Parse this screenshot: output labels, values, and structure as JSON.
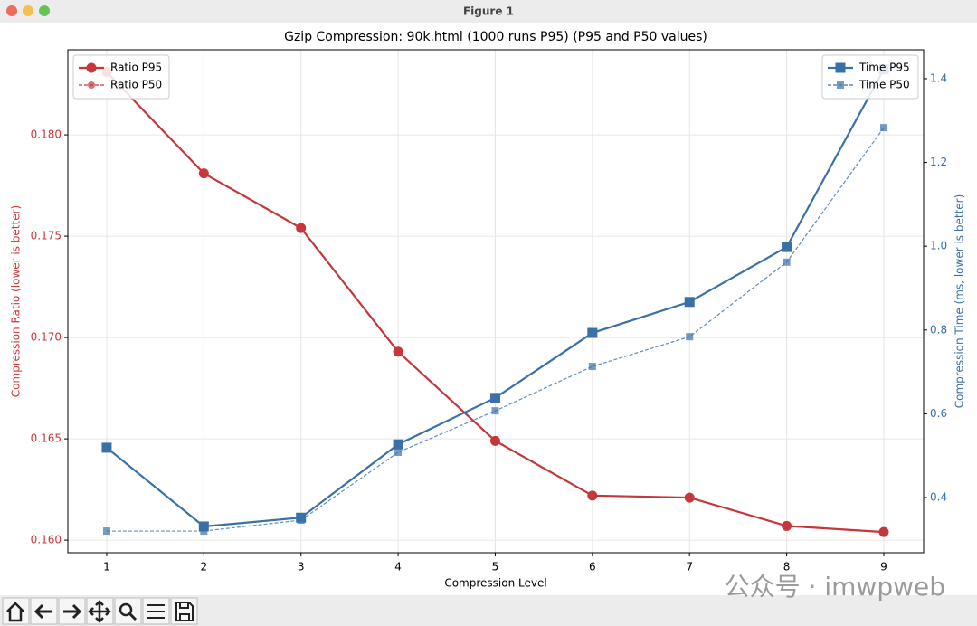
{
  "window": {
    "title": "Figure 1"
  },
  "chart_data": {
    "type": "line",
    "title": "Gzip Compression: 90k.html (1000 runs P95) (P95 and P50 values)",
    "xlabel": "Compression Level",
    "ylabel": "Compression Ratio (lower is better)",
    "y2label": "Compression Time (ms, lower is better)",
    "x": [
      1,
      2,
      3,
      4,
      5,
      6,
      7,
      8,
      9
    ],
    "xlim": [
      0.6,
      9.41
    ],
    "xticks": [
      1,
      2,
      3,
      4,
      5,
      6,
      7,
      8,
      9
    ],
    "ylim": [
      0.15938,
      0.1842
    ],
    "yticks": [
      {
        "value": 0.16,
        "label": "0.160"
      },
      {
        "value": 0.165,
        "label": "0.165"
      },
      {
        "value": 0.17,
        "label": "0.170"
      },
      {
        "value": 0.175,
        "label": "0.175"
      },
      {
        "value": 0.18,
        "label": "0.180"
      }
    ],
    "y2lim": [
      0.2683,
      1.469
    ],
    "y2ticks": [
      0.4,
      0.6,
      0.8,
      {
        "value": 1.0,
        "label": "1.0"
      },
      1.2,
      1.4
    ],
    "grid": true,
    "legend": "upper left",
    "legend2": "upper right",
    "series": [
      {
        "name": "Ratio P95",
        "color": "#c5373a",
        "linestyle": "solid",
        "marker": "circle",
        "values": [
          0.1831,
          0.1781,
          0.1754,
          0.1693,
          0.1649,
          0.1622,
          0.1621,
          0.1607,
          0.1604
        ]
      },
      {
        "name": "Ratio P50",
        "color": "#c5373a",
        "linestyle": "dashed",
        "marker": "circle",
        "values": [
          0.1831,
          0.1781,
          0.1754,
          0.1693,
          0.1649,
          0.1622,
          0.1621,
          0.1607,
          0.1604
        ]
      },
      {
        "name": "Time P95",
        "color": "#3a70a8",
        "linestyle": "solid",
        "marker": "square",
        "axis": "y2",
        "values": [
          0.519,
          0.331,
          0.352,
          0.527,
          0.638,
          0.793,
          0.867,
          0.998,
          1.422
        ]
      },
      {
        "name": "Time P50",
        "color": "#3a70a8",
        "linestyle": "dashed",
        "marker": "square",
        "axis": "y2",
        "values": [
          0.32,
          0.32,
          0.346,
          0.508,
          0.607,
          0.713,
          0.784,
          0.962,
          1.283
        ]
      }
    ]
  },
  "watermark": "公众号 · imwpweb"
}
